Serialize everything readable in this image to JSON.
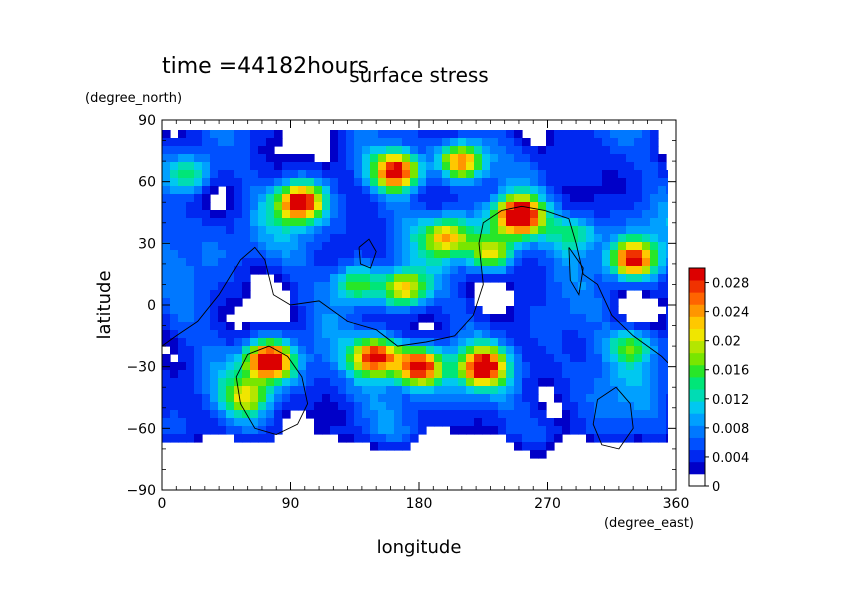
{
  "chart_data": {
    "type": "heatmap",
    "title": "surface stress",
    "subtitle": "time =44182hours",
    "xlabel": "longitude",
    "ylabel": "latitude",
    "x_unit": "(degree_east)",
    "y_unit": "(degree_north)",
    "xlim": [
      0,
      360
    ],
    "ylim": [
      -90,
      90
    ],
    "x_ticks": [
      "0",
      "90",
      "180",
      "270",
      "360"
    ],
    "y_ticks": [
      "90",
      "60",
      "30",
      "0",
      "−30",
      "−60",
      "−90"
    ],
    "colorbar": {
      "range": [
        0,
        0.03
      ],
      "tick_labels": [
        "0",
        "0.004",
        "0.008",
        "0.012",
        "0.016",
        "0.02",
        "0.024",
        "0.028"
      ],
      "colors": [
        "#ffffff",
        "#0000c8",
        "#0028f0",
        "#0050ff",
        "#0078ff",
        "#00a0ff",
        "#00c8f0",
        "#00dcb4",
        "#00e678",
        "#28e628",
        "#78e600",
        "#b4e600",
        "#f0e600",
        "#ffc800",
        "#ff9600",
        "#ff6400",
        "#f03200",
        "#dc0000"
      ]
    },
    "hotspots": [
      {
        "lon": 20,
        "lat": 64,
        "value": 0.012
      },
      {
        "lon": 97,
        "lat": 50,
        "value": 0.026
      },
      {
        "lon": 165,
        "lat": 65,
        "value": 0.026
      },
      {
        "lon": 210,
        "lat": 70,
        "value": 0.024
      },
      {
        "lon": 250,
        "lat": 43,
        "value": 0.03
      },
      {
        "lon": 200,
        "lat": 33,
        "value": 0.016
      },
      {
        "lon": 230,
        "lat": 25,
        "value": 0.016
      },
      {
        "lon": 170,
        "lat": 8,
        "value": 0.018
      },
      {
        "lon": 330,
        "lat": 22,
        "value": 0.024
      },
      {
        "lon": 75,
        "lat": -27,
        "value": 0.028
      },
      {
        "lon": 180,
        "lat": -30,
        "value": 0.026
      },
      {
        "lon": 225,
        "lat": -30,
        "value": 0.024
      },
      {
        "lon": 150,
        "lat": -25,
        "value": 0.026
      },
      {
        "lon": 60,
        "lat": -45,
        "value": 0.012
      },
      {
        "lon": 330,
        "lat": -20,
        "value": 0.012
      },
      {
        "lon": 135,
        "lat": 10,
        "value": 0.012
      },
      {
        "lon": 290,
        "lat": 35,
        "value": 0.01
      }
    ]
  }
}
